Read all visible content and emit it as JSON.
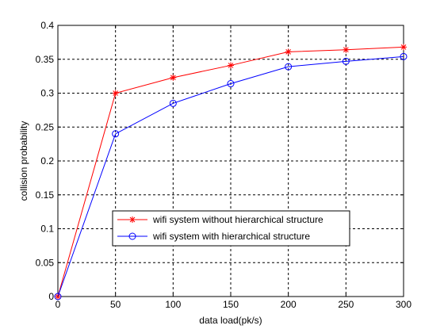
{
  "chart_data": {
    "type": "line",
    "title": "",
    "xlabel": "data load(pk/s)",
    "ylabel": "collision probability",
    "x": [
      0,
      50,
      100,
      150,
      200,
      250,
      300
    ],
    "xlim": [
      0,
      300
    ],
    "ylim": [
      0,
      0.4
    ],
    "xticks": [
      0,
      50,
      100,
      150,
      200,
      250,
      300
    ],
    "yticks": [
      0,
      0.05,
      0.1,
      0.15,
      0.2,
      0.25,
      0.3,
      0.35,
      0.4
    ],
    "xtick_labels": [
      "0",
      "50",
      "100",
      "150",
      "200",
      "250",
      "300"
    ],
    "ytick_labels": [
      "0",
      "0.05",
      "0.1",
      "0.15",
      "0.2",
      "0.25",
      "0.3",
      "0.35",
      "0.4"
    ],
    "grid": true,
    "legend_position": "lower-center",
    "series": [
      {
        "name": "wifi system without hierarchical structure",
        "values": [
          0,
          0.3,
          0.323,
          0.341,
          0.361,
          0.364,
          0.368
        ],
        "color": "#ff0000",
        "marker": "star"
      },
      {
        "name": "wifi system with hierarchical structure",
        "values": [
          0,
          0.24,
          0.285,
          0.314,
          0.339,
          0.347,
          0.354
        ],
        "color": "#0000ff",
        "marker": "circle"
      }
    ]
  }
}
